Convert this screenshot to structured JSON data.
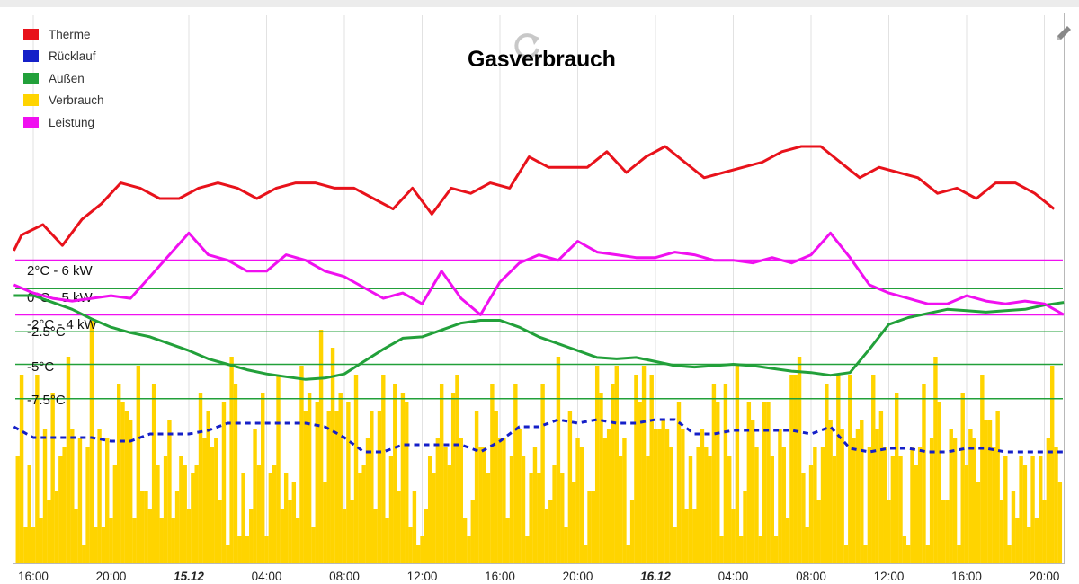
{
  "title": "Gasverbrauch",
  "icons": {
    "reload": "reload-icon",
    "edit": "pencil-icon"
  },
  "legend": [
    {
      "label": "Therme",
      "color": "#e8121b"
    },
    {
      "label": "Rücklauf",
      "color": "#1520c8"
    },
    {
      "label": "Außen",
      "color": "#22a03a"
    },
    {
      "label": "Verbrauch",
      "color": "#ffd400"
    },
    {
      "label": "Leistung",
      "color": "#f010f0"
    }
  ],
  "reference_lines": [
    {
      "label": "2°C - 6 kW",
      "color": "#f010f0"
    },
    {
      "label": "0°C - 5 kW",
      "color": "#22a03a"
    },
    {
      "label": "-2°C - 4 kW",
      "color": "#f010f0"
    },
    {
      "label": "-2.5°C",
      "color": "#22a03a"
    },
    {
      "label": "-5°C",
      "color": "#22a03a"
    },
    {
      "label": "-7.5°C",
      "color": "#22a03a"
    }
  ],
  "chart_data": {
    "type": "line",
    "title": "Gasverbrauch",
    "xlabel": "",
    "ylabel": "",
    "x_unit": "hours since 16:00 on 14.12",
    "x_range": [
      -1,
      53
    ],
    "x_ticks": [
      {
        "x": 0,
        "label": "16:00",
        "bold": false
      },
      {
        "x": 4,
        "label": "20:00",
        "bold": false
      },
      {
        "x": 8,
        "label": "15.12",
        "bold": true
      },
      {
        "x": 12,
        "label": "04:00",
        "bold": false
      },
      {
        "x": 16,
        "label": "08:00",
        "bold": false
      },
      {
        "x": 20,
        "label": "12:00",
        "bold": false
      },
      {
        "x": 24,
        "label": "16:00",
        "bold": false
      },
      {
        "x": 28,
        "label": "20:00",
        "bold": false
      },
      {
        "x": 32,
        "label": "16.12",
        "bold": true
      },
      {
        "x": 36,
        "label": "04:00",
        "bold": false
      },
      {
        "x": 40,
        "label": "08:00",
        "bold": false
      },
      {
        "x": 44,
        "label": "12:00",
        "bold": false
      },
      {
        "x": 48,
        "label": "16:00",
        "bold": false
      },
      {
        "x": 52,
        "label": "20:00",
        "bold": false
      }
    ],
    "grid": true,
    "legend_position": "top-left",
    "series": [
      {
        "name": "Therme",
        "color": "#e8121b",
        "x": [
          -1,
          -0.6,
          0.5,
          1.5,
          2.5,
          3.5,
          4.5,
          5.5,
          6.5,
          7.5,
          8.5,
          9.5,
          10.5,
          11.5,
          12.5,
          13.5,
          14.5,
          15.5,
          16.5,
          17.5,
          18.5,
          19.5,
          20.5,
          21.5,
          22.5,
          23.5,
          24.5,
          25.5,
          26.5,
          27.5,
          28.5,
          29.5,
          30.5,
          31.5,
          32.5,
          33.5,
          34.5,
          35.5,
          36.5,
          37.5,
          38.5,
          39.5,
          40.5,
          41.5,
          42.5,
          43.5,
          44.5,
          45.5,
          46.5,
          47.5,
          48.5,
          49.5,
          50.5,
          51.5,
          52.5
        ],
        "y": [
          60,
          63,
          65,
          61,
          66,
          69,
          73,
          72,
          70,
          70,
          72,
          73,
          72,
          70,
          72,
          73,
          73,
          72,
          72,
          70,
          68,
          72,
          67,
          72,
          71,
          73,
          72,
          78,
          76,
          76,
          76,
          79,
          75,
          78,
          80,
          77,
          74,
          75,
          76,
          77,
          79,
          80,
          80,
          77,
          74,
          76,
          75,
          74,
          71,
          72,
          70,
          73,
          73,
          71,
          68
        ]
      },
      {
        "name": "Rücklauf",
        "color": "#1520c8",
        "x": [
          -1,
          0,
          1,
          2,
          3,
          4,
          5,
          6,
          7,
          8,
          9,
          10,
          11,
          12,
          13,
          14,
          15,
          16,
          17,
          18,
          19,
          20,
          21,
          22,
          23,
          24,
          25,
          26,
          27,
          28,
          29,
          30,
          31,
          32,
          33,
          34,
          35,
          36,
          37,
          38,
          39,
          40,
          41,
          42,
          43,
          44,
          45,
          46,
          47,
          48,
          49,
          50,
          51,
          52,
          53
        ],
        "y": [
          38,
          35,
          35,
          35,
          35,
          34,
          34,
          36,
          36,
          36,
          37,
          39,
          39,
          39,
          39,
          39,
          38,
          35,
          31,
          31,
          33,
          33,
          33,
          33,
          31,
          34,
          38,
          38,
          40,
          39,
          40,
          39,
          39,
          40,
          40,
          36,
          36,
          37,
          37,
          37,
          37,
          36,
          38,
          32,
          31,
          32,
          32,
          31,
          31,
          32,
          32,
          31,
          31,
          31,
          31
        ]
      },
      {
        "name": "Außen",
        "color": "#22a03a",
        "x": [
          -1,
          0,
          1,
          2,
          3,
          4,
          5,
          6,
          7,
          8,
          9,
          10,
          11,
          12,
          13,
          14,
          15,
          16,
          17,
          18,
          19,
          20,
          21,
          22,
          23,
          24,
          25,
          26,
          27,
          28,
          29,
          30,
          31,
          32,
          33,
          34,
          35,
          36,
          37,
          38,
          39,
          40,
          41,
          42,
          43,
          44,
          45,
          46,
          47,
          48,
          49,
          50,
          51,
          52,
          53
        ],
        "y": [
          0,
          0,
          -0.5,
          -1,
          -1.7,
          -2.3,
          -2.7,
          -3,
          -3.5,
          -4,
          -4.6,
          -5,
          -5.4,
          -5.7,
          -5.9,
          -6.1,
          -6,
          -5.7,
          -4.8,
          -3.9,
          -3.1,
          -3,
          -2.5,
          -2,
          -1.8,
          -1.8,
          -2.3,
          -3,
          -3.5,
          -4,
          -4.5,
          -4.6,
          -4.5,
          -4.8,
          -5.1,
          -5.2,
          -5.1,
          -5,
          -5.1,
          -5.3,
          -5.5,
          -5.6,
          -5.8,
          -5.6,
          -3.9,
          -2.1,
          -1.6,
          -1.3,
          -1,
          -1.1,
          -1.2,
          -1.1,
          -1,
          -0.7,
          -0.5
        ]
      },
      {
        "name": "Leistung",
        "color": "#f010f0",
        "x": [
          -1,
          0,
          1,
          2,
          3,
          4,
          5,
          6,
          7,
          8,
          9,
          10,
          11,
          12,
          13,
          14,
          15,
          16,
          17,
          18,
          19,
          20,
          21,
          22,
          23,
          24,
          25,
          26,
          27,
          28,
          29,
          30,
          31,
          32,
          33,
          34,
          35,
          36,
          37,
          38,
          39,
          40,
          41,
          42,
          43,
          44,
          45,
          46,
          47,
          48,
          49,
          50,
          51,
          52,
          53
        ],
        "y": [
          5.1,
          4.8,
          4.6,
          4.5,
          4.6,
          4.7,
          4.6,
          5.4,
          6.2,
          7,
          6.2,
          6,
          5.6,
          5.6,
          6.2,
          6,
          5.6,
          5.4,
          5.0,
          4.6,
          4.8,
          4.4,
          5.6,
          4.6,
          4.0,
          5.2,
          5.9,
          6.2,
          6,
          6.7,
          6.3,
          6.2,
          6.1,
          6.1,
          6.3,
          6.2,
          6,
          6,
          5.9,
          6.1,
          5.9,
          6.2,
          7.0,
          6.1,
          5.1,
          4.8,
          4.6,
          4.4,
          4.4,
          4.7,
          4.5,
          4.4,
          4.5,
          4.4,
          4.0
        ]
      },
      {
        "name": "Verbrauch",
        "color": "#ffd400",
        "x_start": -0.8,
        "x_step": 0.2,
        "y": [
          12,
          21,
          4,
          11,
          4,
          21,
          5,
          15,
          7,
          19,
          8,
          12,
          13,
          23,
          15,
          6,
          14,
          2,
          13,
          27,
          4,
          15,
          4,
          14,
          5,
          11,
          20,
          18,
          17,
          16,
          5,
          22,
          8,
          8,
          6,
          20,
          11,
          5,
          12,
          16,
          5,
          8,
          12,
          11,
          6,
          10,
          11,
          19,
          14,
          17,
          13,
          14,
          7,
          18,
          2,
          23,
          20,
          3,
          10,
          3,
          6,
          15,
          11,
          19,
          3,
          10,
          11,
          21,
          6,
          10,
          7,
          9,
          5,
          22,
          17,
          19,
          4,
          18,
          26,
          9,
          17,
          24,
          17,
          19,
          6,
          18,
          7,
          21,
          10,
          11,
          14,
          17,
          6,
          17,
          21,
          5,
          12,
          20,
          8,
          19,
          18,
          4,
          8,
          2,
          3,
          6,
          12,
          10,
          14,
          20,
          13,
          11,
          19,
          21,
          14,
          5,
          3,
          7,
          17,
          13,
          13,
          10,
          20,
          17,
          14,
          14,
          5,
          12,
          20,
          15,
          12,
          3,
          10,
          13,
          10,
          20,
          6,
          7,
          11,
          23,
          10,
          4,
          17,
          9,
          14,
          13,
          2,
          8,
          8,
          22,
          19,
          14,
          15,
          20,
          22,
          12,
          14,
          2,
          7,
          21,
          18,
          22,
          12,
          21,
          15,
          15,
          16,
          15,
          13,
          4,
          18,
          15,
          6,
          12,
          6,
          13,
          15,
          13,
          12,
          20,
          18,
          3,
          20,
          12,
          6,
          22,
          3,
          8,
          18,
          16,
          13,
          3,
          18,
          18,
          12,
          3,
          15,
          13,
          5,
          21,
          21,
          23,
          10,
          4,
          11,
          13,
          7,
          13,
          20,
          16,
          12,
          21,
          15,
          2,
          21,
          14,
          15,
          16,
          2,
          13,
          21,
          15,
          17,
          13,
          7,
          12,
          19,
          12,
          3,
          2,
          13,
          11,
          13,
          20,
          2,
          14,
          23,
          18,
          7,
          7,
          15,
          14,
          2,
          19,
          11,
          15,
          14,
          9,
          21,
          16,
          16,
          13,
          17,
          7,
          12,
          2,
          8,
          5,
          12,
          11,
          4,
          12,
          5,
          12,
          7,
          14,
          22,
          13,
          9,
          17,
          14,
          20,
          2,
          3,
          15,
          15,
          17,
          9,
          18,
          17,
          2,
          10,
          3,
          4,
          12,
          4
        ]
      }
    ],
    "y_range_note": "mixed units: temperatures (°C) and power (kW) share the panel"
  }
}
